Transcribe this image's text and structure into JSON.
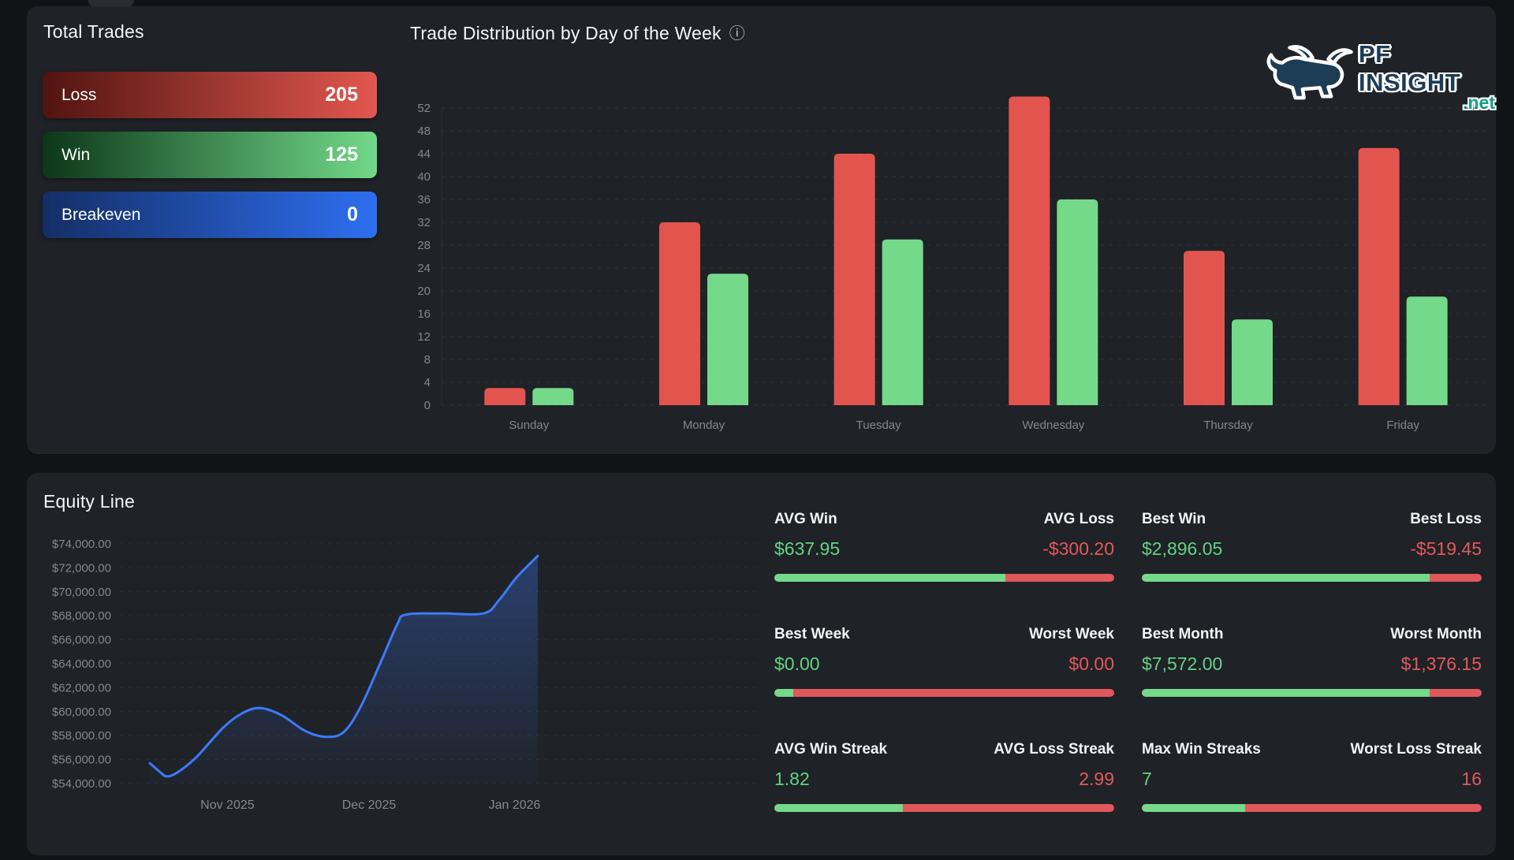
{
  "titles": {
    "total_trades": "Total Trades",
    "day_distribution": "Trade Distribution by Day of the Week",
    "equity": "Equity Line"
  },
  "logo": {
    "brand": "PF INSIGHT",
    "tld": ".net"
  },
  "info_icon_glyph": "ⓘ",
  "colors": {
    "loss_red": "#e2554f",
    "win_green": "#75d98a",
    "breakeven_blue": "#2e6ff0",
    "equity_line_blue": "#3d7bfa",
    "value_green": "#63d384",
    "value_red": "#e25a5a"
  },
  "total_trades": {
    "rows": [
      {
        "label": "Loss",
        "value": "205"
      },
      {
        "label": "Win",
        "value": "125"
      },
      {
        "label": "Breakeven",
        "value": "0"
      }
    ]
  },
  "chart_data": [
    {
      "id": "day_distribution",
      "type": "bar",
      "title": "Trade Distribution by Day of the Week",
      "categories": [
        "Sunday",
        "Monday",
        "Tuesday",
        "Wednesday",
        "Thursday",
        "Friday"
      ],
      "series": [
        {
          "name": "Loss",
          "color": "#e2554f",
          "values": [
            3,
            32,
            44,
            54,
            27,
            45
          ]
        },
        {
          "name": "Win",
          "color": "#75d98a",
          "values": [
            3,
            23,
            29,
            36,
            15,
            19
          ]
        }
      ],
      "ylim": [
        0,
        52
      ],
      "ytick_step": 4,
      "grid": "dashed-horizontal",
      "legend": "none"
    },
    {
      "id": "equity_line",
      "type": "area",
      "title": "Equity Line",
      "ylim": [
        54000,
        74000
      ],
      "ytick_step": 2000,
      "y_ticks": [
        "$74,000.00",
        "$72,000.00",
        "$70,000.00",
        "$68,000.00",
        "$66,000.00",
        "$64,000.00",
        "$62,000.00",
        "$60,000.00",
        "$58,000.00",
        "$56,000.00",
        "$54,000.00"
      ],
      "x_ticks": [
        {
          "label": "Nov 2025",
          "t": 0.2
        },
        {
          "label": "Dec 2025",
          "t": 0.565
        },
        {
          "label": "Jan 2026",
          "t": 0.94
        }
      ],
      "grid": "dashed-horizontal",
      "line_color": "#3d7bfa",
      "points": [
        [
          0.0,
          55700
        ],
        [
          0.025,
          55000
        ],
        [
          0.043,
          54600
        ],
        [
          0.07,
          54900
        ],
        [
          0.12,
          56200
        ],
        [
          0.19,
          58700
        ],
        [
          0.24,
          59900
        ],
        [
          0.285,
          60300
        ],
        [
          0.34,
          59700
        ],
        [
          0.4,
          58400
        ],
        [
          0.453,
          57900
        ],
        [
          0.5,
          58300
        ],
        [
          0.545,
          60500
        ],
        [
          0.6,
          64500
        ],
        [
          0.638,
          67300
        ],
        [
          0.66,
          68100
        ],
        [
          0.75,
          68200
        ],
        [
          0.86,
          68200
        ],
        [
          0.9,
          69300
        ],
        [
          0.945,
          71200
        ],
        [
          1.0,
          73000
        ]
      ]
    }
  ],
  "stats": [
    {
      "left_label": "AVG Win",
      "right_label": "AVG Loss",
      "left_value": "$637.95",
      "right_value": "-$300.20",
      "green_pct": 68.0
    },
    {
      "left_label": "Best Win",
      "right_label": "Best Loss",
      "left_value": "$2,896.05",
      "right_value": "-$519.45",
      "green_pct": 84.8
    },
    {
      "left_label": "Best Week",
      "right_label": "Worst Week",
      "left_value": "$0.00",
      "right_value": "$0.00",
      "green_pct": 5.5
    },
    {
      "left_label": "Best Month",
      "right_label": "Worst Month",
      "left_value": "$7,572.00",
      "right_value": "$1,376.15",
      "green_pct": 84.6
    },
    {
      "left_label": "AVG Win Streak",
      "right_label": "AVG Loss Streak",
      "left_value": "1.82",
      "right_value": "2.99",
      "green_pct": 37.8
    },
    {
      "left_label": "Max Win Streaks",
      "right_label": "Worst Loss Streak",
      "left_value": "7",
      "right_value": "16",
      "green_pct": 30.4
    }
  ]
}
